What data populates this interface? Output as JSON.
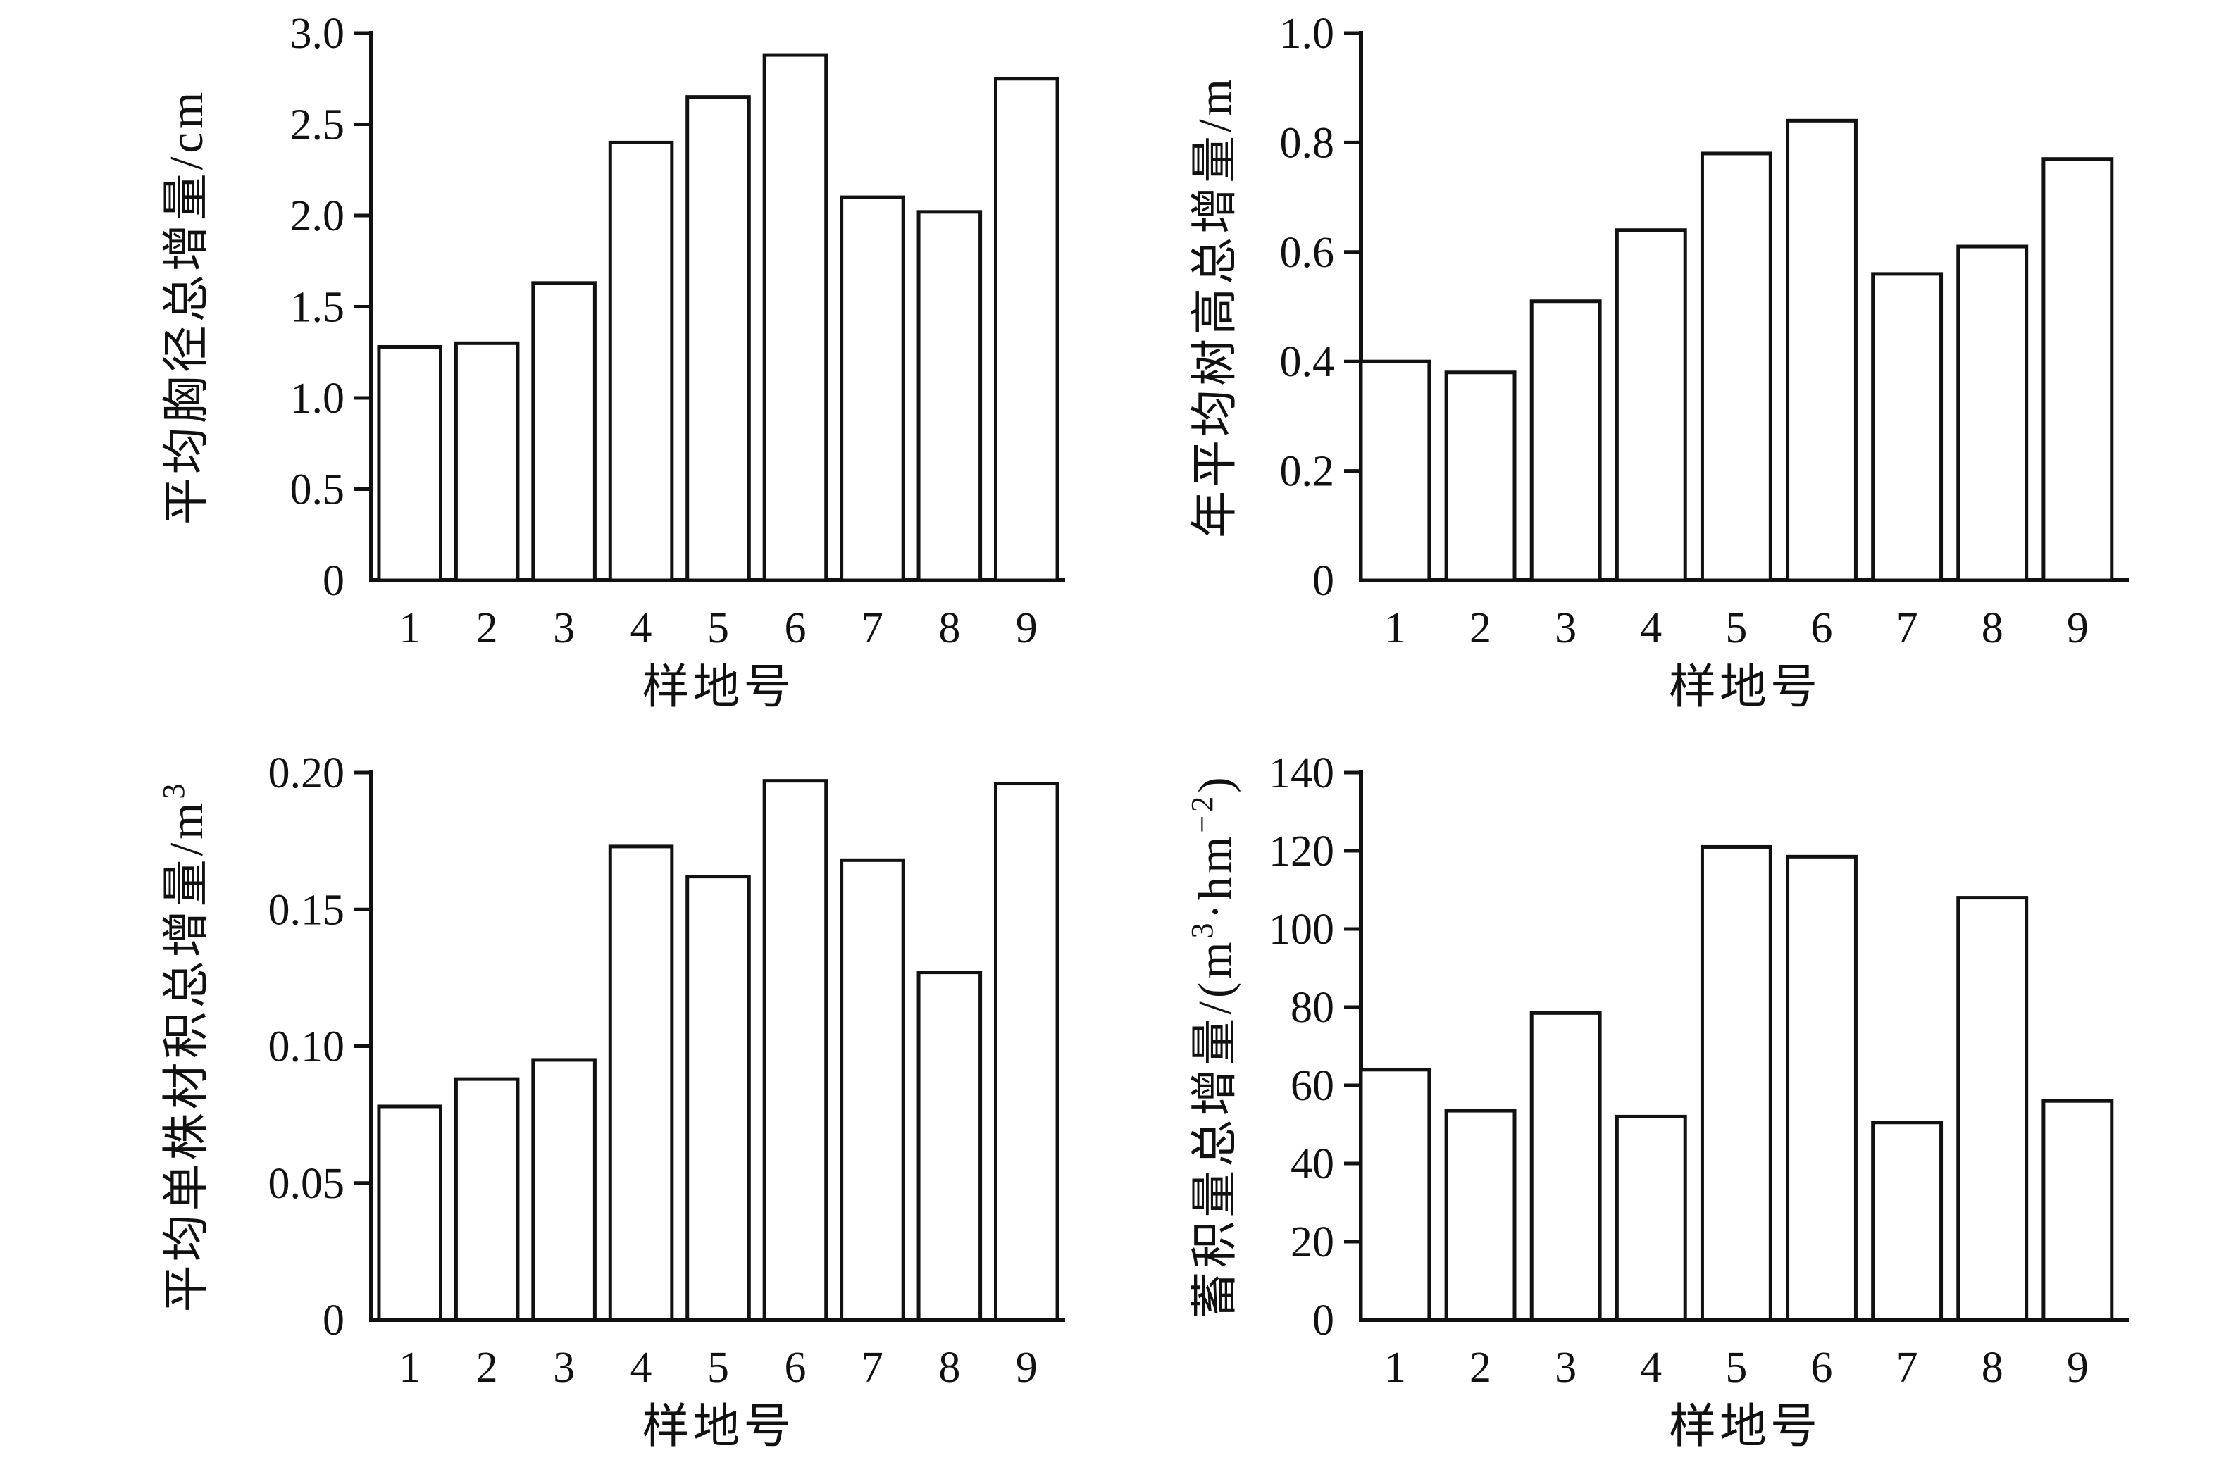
{
  "page": {
    "background": "#ffffff",
    "axis_color": "#111111",
    "bar_fill": "#ffffff",
    "bar_stroke": "#111111"
  },
  "chart_data": [
    {
      "type": "bar",
      "title": "",
      "xlabel": "样地号",
      "ylabel": "平均胸径总增量/cm",
      "ylabel_parts": [
        {
          "text": "平均胸径总增量/cm",
          "sup": false
        }
      ],
      "categories": [
        "1",
        "2",
        "3",
        "4",
        "5",
        "6",
        "7",
        "8",
        "9"
      ],
      "values": [
        1.28,
        1.3,
        1.63,
        2.4,
        2.65,
        2.88,
        2.1,
        2.02,
        2.75
      ],
      "ylim": [
        0,
        3.0
      ],
      "ytick_values": [
        0,
        0.5,
        1.0,
        1.5,
        2.0,
        2.5,
        3.0
      ],
      "ytick_labels": [
        "0",
        "0.5",
        "1.0",
        "1.5",
        "2.0",
        "2.5",
        "3.0"
      ],
      "grid": false,
      "legend": null
    },
    {
      "type": "bar",
      "title": "",
      "xlabel": "样地号",
      "ylabel": "年平均树高总增量/m",
      "ylabel_parts": [
        {
          "text": "年平均树高总增量/m",
          "sup": false
        }
      ],
      "categories": [
        "1",
        "2",
        "3",
        "4",
        "5",
        "6",
        "7",
        "8",
        "9"
      ],
      "values": [
        0.4,
        0.38,
        0.51,
        0.64,
        0.78,
        0.84,
        0.56,
        0.61,
        0.77
      ],
      "ylim": [
        0,
        1.0
      ],
      "ytick_values": [
        0,
        0.2,
        0.4,
        0.6,
        0.8,
        1.0
      ],
      "ytick_labels": [
        "0",
        "0.2",
        "0.4",
        "0.6",
        "0.8",
        "1.0"
      ],
      "grid": false,
      "legend": null
    },
    {
      "type": "bar",
      "title": "",
      "xlabel": "样地号",
      "ylabel": "平均单株材积总增量/m³",
      "ylabel_parts": [
        {
          "text": "平均单株材积总增量/m",
          "sup": false
        },
        {
          "text": "3",
          "sup": true
        }
      ],
      "categories": [
        "1",
        "2",
        "3",
        "4",
        "5",
        "6",
        "7",
        "8",
        "9"
      ],
      "values": [
        0.078,
        0.088,
        0.095,
        0.173,
        0.162,
        0.197,
        0.168,
        0.127,
        0.196
      ],
      "ylim": [
        0,
        0.2
      ],
      "ytick_values": [
        0,
        0.05,
        0.1,
        0.15,
        0.2
      ],
      "ytick_labels": [
        "0",
        "0.05",
        "0.10",
        "0.15",
        "0.20"
      ],
      "grid": false,
      "legend": null
    },
    {
      "type": "bar",
      "title": "",
      "xlabel": "样地号",
      "ylabel": "蓄积量总增量/(m³·hm⁻²)",
      "ylabel_parts": [
        {
          "text": "蓄积量总增量/(m",
          "sup": false
        },
        {
          "text": "3",
          "sup": true
        },
        {
          "text": "·hm",
          "sup": false
        },
        {
          "text": "−2",
          "sup": true
        },
        {
          "text": ")",
          "sup": false
        }
      ],
      "categories": [
        "1",
        "2",
        "3",
        "4",
        "5",
        "6",
        "7",
        "8",
        "9"
      ],
      "values": [
        64,
        53.5,
        78.5,
        52,
        121,
        118.5,
        50.5,
        108,
        56
      ],
      "ylim": [
        0,
        140
      ],
      "ytick_values": [
        0,
        20,
        40,
        60,
        80,
        100,
        120,
        140
      ],
      "ytick_labels": [
        "0",
        "20",
        "40",
        "60",
        "80",
        "100",
        "120",
        "140"
      ],
      "grid": false,
      "legend": null
    }
  ]
}
